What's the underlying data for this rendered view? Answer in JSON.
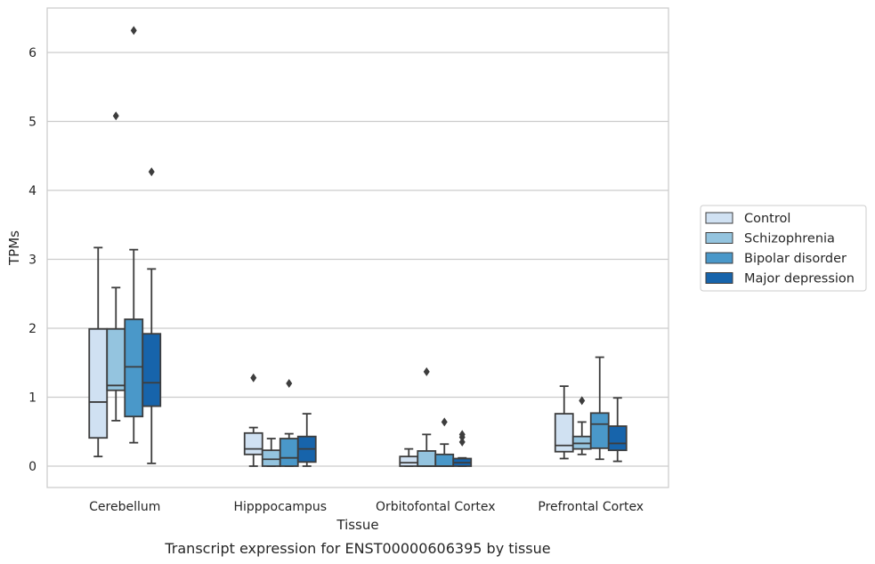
{
  "chart_data": {
    "type": "box",
    "title": "",
    "caption": "Transcript expression for ENST00000606395 by tissue",
    "xlabel": "Tissue",
    "ylabel": "TPMs",
    "ylim": [
      -0.3,
      6.65
    ],
    "yticks": [
      0,
      1,
      2,
      3,
      4,
      5,
      6
    ],
    "grid": "horizontal",
    "legend_position": "right",
    "categories": [
      "Cerebellum",
      "Hipppocampus",
      "Orbitofontal Cortex",
      "Prefrontal Cortex"
    ],
    "series": [
      {
        "name": "Control",
        "color": "#d0e1f2",
        "boxes": [
          {
            "low": 0.14,
            "q1": 0.41,
            "median": 0.93,
            "q3": 1.99,
            "high": 3.17,
            "outliers": []
          },
          {
            "low": 0.0,
            "q1": 0.17,
            "median": 0.25,
            "q3": 0.48,
            "high": 0.56,
            "outliers": [
              1.28
            ]
          },
          {
            "low": 0.0,
            "q1": 0.0,
            "median": 0.05,
            "q3": 0.14,
            "high": 0.25,
            "outliers": []
          },
          {
            "low": 0.11,
            "q1": 0.21,
            "median": 0.3,
            "q3": 0.76,
            "high": 1.16,
            "outliers": []
          }
        ]
      },
      {
        "name": "Schizophrenia",
        "color": "#94c4df",
        "boxes": [
          {
            "low": 0.66,
            "q1": 1.1,
            "median": 1.17,
            "q3": 1.99,
            "high": 2.59,
            "outliers": [
              5.08
            ]
          },
          {
            "low": 0.0,
            "q1": 0.0,
            "median": 0.1,
            "q3": 0.23,
            "high": 0.4,
            "outliers": []
          },
          {
            "low": 0.0,
            "q1": 0.0,
            "median": 0.0,
            "q3": 0.22,
            "high": 0.46,
            "outliers": [
              1.37
            ]
          },
          {
            "low": 0.17,
            "q1": 0.25,
            "median": 0.33,
            "q3": 0.43,
            "high": 0.64,
            "outliers": [
              0.95
            ]
          }
        ]
      },
      {
        "name": "Bipolar disorder",
        "color": "#4a98c9",
        "boxes": [
          {
            "low": 0.34,
            "q1": 0.72,
            "median": 1.44,
            "q3": 2.13,
            "high": 3.14,
            "outliers": [
              6.32
            ]
          },
          {
            "low": 0.0,
            "q1": 0.0,
            "median": 0.12,
            "q3": 0.4,
            "high": 0.47,
            "outliers": [
              1.2
            ]
          },
          {
            "low": 0.0,
            "q1": 0.0,
            "median": 0.0,
            "q3": 0.17,
            "high": 0.32,
            "outliers": [
              0.64
            ]
          },
          {
            "low": 0.1,
            "q1": 0.26,
            "median": 0.61,
            "q3": 0.77,
            "high": 1.58,
            "outliers": []
          }
        ]
      },
      {
        "name": "Major depression",
        "color": "#1764ab",
        "boxes": [
          {
            "low": 0.04,
            "q1": 0.87,
            "median": 1.21,
            "q3": 1.92,
            "high": 2.86,
            "outliers": [
              4.27
            ]
          },
          {
            "low": 0.0,
            "q1": 0.06,
            "median": 0.25,
            "q3": 0.43,
            "high": 0.76,
            "outliers": []
          },
          {
            "low": 0.0,
            "q1": 0.0,
            "median": 0.05,
            "q3": 0.11,
            "high": 0.12,
            "outliers": [
              0.35,
              0.42,
              0.46
            ]
          },
          {
            "low": 0.07,
            "q1": 0.23,
            "median": 0.33,
            "q3": 0.58,
            "high": 0.99,
            "outliers": []
          }
        ]
      }
    ]
  }
}
